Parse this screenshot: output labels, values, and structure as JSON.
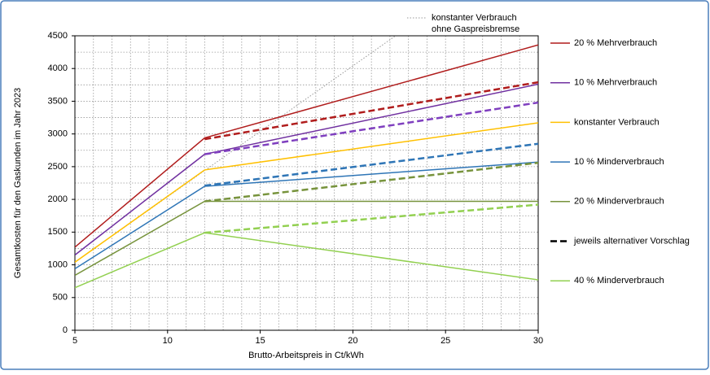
{
  "chart_data": {
    "type": "line",
    "x_label": "Brutto-Arbeitspreis in Ct/kWh",
    "y_label": "Gesamtkosten für den Gaskunden im Jahr 2023",
    "xlim": [
      5,
      30
    ],
    "xticks": [
      5,
      10,
      15,
      20,
      25,
      30
    ],
    "ylim": [
      0,
      4500
    ],
    "yticks": [
      0,
      500,
      1000,
      1500,
      2000,
      2500,
      3000,
      3500,
      4000,
      4500
    ],
    "x_grid": [
      5,
      6,
      7,
      8,
      9,
      10,
      11,
      12,
      13,
      14,
      15,
      16,
      17,
      18,
      19,
      20,
      21,
      22,
      23,
      24,
      25,
      26,
      27,
      28,
      29,
      30
    ],
    "y_grid": [
      0,
      250,
      500,
      750,
      1000,
      1250,
      1500,
      1750,
      2000,
      2250,
      2500,
      2750,
      3000,
      3250,
      3500,
      3750,
      4000,
      4250,
      4500
    ],
    "grid": true,
    "series": [
      {
        "color": "#999999",
        "style": "dotted",
        "x": [
          5,
          22.3
        ],
        "values": [
          1040,
          4500
        ],
        "label_lines": [
          "konstanter Verbrauch",
          "ohne Gaspreisbremse"
        ]
      },
      {
        "color": "#b01c1c",
        "style": "solid",
        "x": [
          5,
          12,
          30
        ],
        "values": [
          1270,
          2940,
          4360
        ]
      },
      {
        "color": "#b01c1c",
        "style": "dashed",
        "x": [
          12,
          30
        ],
        "values": [
          2920,
          3790
        ]
      },
      {
        "color": "#7030a0",
        "style": "solid",
        "x": [
          5,
          12,
          30
        ],
        "values": [
          1150,
          2690,
          3760
        ]
      },
      {
        "color": "#7f3fbf",
        "style": "dashed",
        "x": [
          12,
          30
        ],
        "values": [
          2690,
          3480
        ]
      },
      {
        "color": "#ffc000",
        "style": "solid",
        "x": [
          5,
          12,
          30
        ],
        "values": [
          1040,
          2450,
          3170
        ]
      },
      {
        "color": "#2e75b6",
        "style": "solid",
        "x": [
          5,
          12,
          30
        ],
        "values": [
          940,
          2200,
          2570
        ]
      },
      {
        "color": "#2e75b6",
        "style": "dashed",
        "x": [
          12,
          30
        ],
        "values": [
          2210,
          2850
        ]
      },
      {
        "color": "#77933c",
        "style": "solid",
        "x": [
          5,
          12,
          30
        ],
        "values": [
          840,
          1970,
          1970
        ]
      },
      {
        "color": "#77933c",
        "style": "dashed",
        "x": [
          12,
          30
        ],
        "values": [
          1970,
          2560
        ]
      },
      {
        "color": "#92d050",
        "style": "solid",
        "x": [
          5,
          12,
          30
        ],
        "values": [
          650,
          1490,
          770
        ]
      },
      {
        "color": "#92d050",
        "style": "dashed",
        "x": [
          12,
          30
        ],
        "values": [
          1490,
          1920
        ]
      }
    ],
    "legend": [
      {
        "label": "20 % Mehrverbrauch",
        "color": "#b01c1c",
        "style": "solid"
      },
      {
        "label": "10 % Mehrverbrauch",
        "color": "#7030a0",
        "style": "solid"
      },
      {
        "label": "konstanter Verbrauch",
        "color": "#ffc000",
        "style": "solid"
      },
      {
        "label": "10 % Minderverbrauch",
        "color": "#2e75b6",
        "style": "solid"
      },
      {
        "label": "20 % Minderverbrauch",
        "color": "#77933c",
        "style": "solid"
      },
      {
        "label": "jeweils alternativer Vorschlag",
        "color": "#000000",
        "style": "dashed"
      },
      {
        "label": "40 % Minderverbrauch",
        "color": "#92d050",
        "style": "solid"
      }
    ]
  }
}
